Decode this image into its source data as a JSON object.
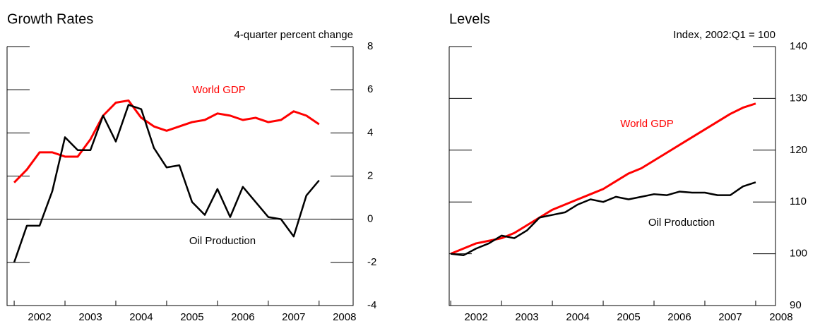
{
  "chart_data": [
    {
      "type": "line",
      "title": "Growth Rates",
      "y_label": "4-quarter percent change",
      "x": [
        2002,
        2002.25,
        2002.5,
        2002.75,
        2003,
        2003.25,
        2003.5,
        2003.75,
        2004,
        2004.25,
        2004.5,
        2004.75,
        2005,
        2005.25,
        2005.5,
        2005.75,
        2006,
        2006.25,
        2006.5,
        2006.75,
        2007,
        2007.25,
        2007.5,
        2007.75,
        2008
      ],
      "series": [
        {
          "name": "World GDP",
          "color": "#ff0000",
          "values": [
            1.7,
            2.3,
            3.1,
            3.1,
            2.9,
            2.9,
            3.7,
            4.8,
            5.4,
            5.5,
            4.7,
            4.3,
            4.1,
            4.3,
            4.5,
            4.6,
            4.9,
            4.8,
            4.6,
            4.7,
            4.5,
            4.6,
            5.0,
            4.8,
            4.4
          ]
        },
        {
          "name": "Oil Production",
          "color": "#000000",
          "values": [
            -2.0,
            -0.3,
            -0.3,
            1.3,
            3.8,
            3.2,
            3.2,
            4.8,
            3.6,
            5.3,
            5.1,
            3.3,
            2.4,
            2.5,
            0.8,
            0.2,
            1.4,
            0.1,
            1.5,
            0.8,
            0.1,
            0.0,
            -0.8,
            1.1,
            1.8
          ]
        }
      ],
      "xlim": [
        2001.86,
        2008.67
      ],
      "xticks": [
        {
          "value": 2002.5,
          "label": "2002"
        },
        {
          "value": 2003.5,
          "label": "2003"
        },
        {
          "value": 2004.5,
          "label": "2004"
        },
        {
          "value": 2005.5,
          "label": "2005"
        },
        {
          "value": 2006.5,
          "label": "2006"
        },
        {
          "value": 2007.5,
          "label": "2007"
        },
        {
          "value": 2008.5,
          "label": "2008"
        }
      ],
      "ylim": [
        -4,
        8
      ],
      "yticks": [
        -4,
        -2,
        0,
        2,
        4,
        6,
        8
      ],
      "zero_line": true
    },
    {
      "type": "line",
      "title": "Levels",
      "y_label": "Index, 2002:Q1 = 100",
      "x": [
        2002,
        2002.25,
        2002.5,
        2002.75,
        2003,
        2003.25,
        2003.5,
        2003.75,
        2004,
        2004.25,
        2004.5,
        2004.75,
        2005,
        2005.25,
        2005.5,
        2005.75,
        2006,
        2006.25,
        2006.5,
        2006.75,
        2007,
        2007.25,
        2007.5,
        2007.75,
        2008
      ],
      "series": [
        {
          "name": "World GDP",
          "color": "#ff0000",
          "values": [
            100,
            101,
            102,
            102.5,
            103,
            104,
            105.5,
            107,
            108.5,
            109.5,
            110.5,
            111.5,
            112.5,
            114,
            115.5,
            116.5,
            118,
            119.5,
            121,
            122.5,
            124,
            125.5,
            127,
            128.2,
            129
          ]
        },
        {
          "name": "Oil Production",
          "color": "#000000",
          "values": [
            100,
            99.7,
            101,
            102,
            103.5,
            103,
            104.5,
            107,
            107.5,
            108,
            109.5,
            110.5,
            110,
            111,
            110.5,
            111,
            111.5,
            111.3,
            112,
            111.8,
            111.8,
            111.3,
            111.3,
            113,
            113.8
          ]
        }
      ],
      "xlim": [
        2001.97,
        2008.39
      ],
      "xticks": [
        {
          "value": 2002.5,
          "label": "2002"
        },
        {
          "value": 2003.5,
          "label": "2003"
        },
        {
          "value": 2004.5,
          "label": "2004"
        },
        {
          "value": 2005.5,
          "label": "2005"
        },
        {
          "value": 2006.5,
          "label": "2006"
        },
        {
          "value": 2007.5,
          "label": "2007"
        },
        {
          "value": 2008.5,
          "label": "2008"
        }
      ],
      "ylim": [
        90,
        140
      ],
      "yticks": [
        90,
        100,
        110,
        120,
        130,
        140
      ],
      "zero_line": false
    }
  ]
}
